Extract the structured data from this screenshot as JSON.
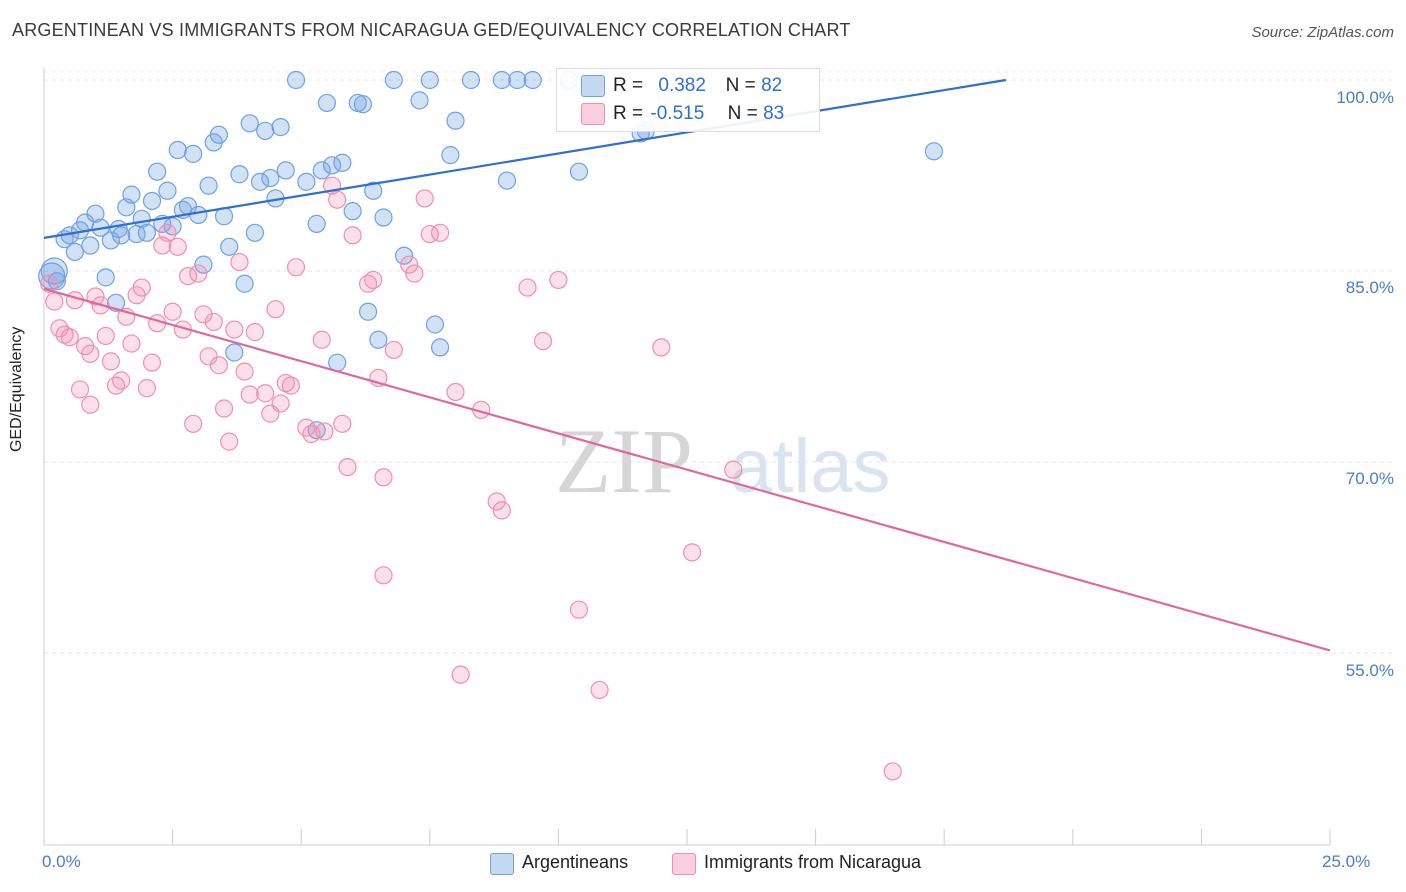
{
  "header": {
    "title": "ARGENTINEAN VS IMMIGRANTS FROM NICARAGUA GED/EQUIVALENCY CORRELATION CHART",
    "source": "Source: ZipAtlas.com"
  },
  "watermark": {
    "zip": "ZIP",
    "atlas": "atlas"
  },
  "legend": {
    "r_label": "R =",
    "n_label": "N =",
    "rows": [
      {
        "r": "0.382",
        "n": "82"
      },
      {
        "r": "-0.515",
        "n": "83"
      }
    ]
  },
  "chart_data": {
    "type": "scatter",
    "title": "ARGENTINEAN VS IMMIGRANTS FROM NICARAGUA GED/EQUIVALENCY CORRELATION CHART",
    "xlabel": "",
    "ylabel": "GED/Equivalency",
    "xlim": [
      0,
      25
    ],
    "ylim": [
      40,
      100
    ],
    "x_tick_labels": [
      "0.0%",
      "25.0%"
    ],
    "y_ticks": [
      55,
      70,
      85,
      100
    ],
    "y_tick_labels": [
      "55.0%",
      "70.0%",
      "85.0%",
      "100.0%"
    ],
    "grid": true,
    "legend_position": "top-center",
    "colors": {
      "Argentineans": "#6fa1e3",
      "Immigrants from Nicaragua": "#ef8fb1",
      "text_blue": "#4a7cc7"
    },
    "series": [
      {
        "name": "Argentineans",
        "trend": {
          "x": [
            0,
            18.7
          ],
          "y": [
            87.6,
            100
          ]
        },
        "points": [
          [
            0.15,
            84.6
          ],
          [
            0.2,
            85.0
          ],
          [
            0.4,
            87.5
          ],
          [
            0.5,
            87.8
          ],
          [
            0.6,
            86.5
          ],
          [
            0.7,
            88.2
          ],
          [
            0.8,
            88.8
          ],
          [
            0.9,
            87.0
          ],
          [
            1.0,
            89.5
          ],
          [
            1.1,
            88.4
          ],
          [
            1.2,
            84.5
          ],
          [
            1.3,
            87.4
          ],
          [
            1.4,
            82.5
          ],
          [
            1.5,
            87.8
          ],
          [
            1.6,
            90.0
          ],
          [
            1.7,
            91.0
          ],
          [
            1.8,
            87.9
          ],
          [
            1.9,
            89.1
          ],
          [
            2.0,
            88.0
          ],
          [
            2.1,
            90.5
          ],
          [
            2.2,
            92.8
          ],
          [
            2.3,
            88.7
          ],
          [
            2.4,
            91.3
          ],
          [
            2.5,
            88.5
          ],
          [
            2.6,
            94.5
          ],
          [
            2.7,
            89.8
          ],
          [
            2.8,
            90.1
          ],
          [
            2.9,
            94.2
          ],
          [
            3.0,
            89.4
          ],
          [
            3.1,
            85.5
          ],
          [
            3.2,
            91.7
          ],
          [
            3.3,
            95.1
          ],
          [
            3.4,
            95.7
          ],
          [
            3.5,
            89.3
          ],
          [
            3.6,
            86.9
          ],
          [
            3.7,
            78.6
          ],
          [
            3.8,
            92.6
          ],
          [
            3.9,
            84.0
          ],
          [
            4.0,
            96.6
          ],
          [
            4.1,
            88.0
          ],
          [
            4.2,
            92.0
          ],
          [
            4.3,
            96.0
          ],
          [
            4.4,
            92.3
          ],
          [
            4.5,
            90.7
          ],
          [
            4.6,
            96.3
          ],
          [
            4.7,
            92.9
          ],
          [
            4.9,
            100.0
          ],
          [
            5.1,
            92.0
          ],
          [
            5.3,
            88.7
          ],
          [
            5.4,
            92.9
          ],
          [
            5.5,
            98.2
          ],
          [
            5.6,
            93.3
          ],
          [
            5.7,
            77.8
          ],
          [
            5.8,
            93.5
          ],
          [
            6.0,
            89.7
          ],
          [
            6.1,
            98.2
          ],
          [
            6.2,
            98.1
          ],
          [
            6.3,
            81.8
          ],
          [
            6.4,
            91.3
          ],
          [
            6.5,
            79.6
          ],
          [
            6.6,
            89.2
          ],
          [
            6.8,
            100.0
          ],
          [
            7.0,
            86.2
          ],
          [
            7.3,
            98.4
          ],
          [
            7.5,
            100.0
          ],
          [
            7.6,
            80.8
          ],
          [
            7.7,
            79.0
          ],
          [
            7.9,
            94.1
          ],
          [
            8.0,
            96.8
          ],
          [
            8.3,
            100.0
          ],
          [
            8.9,
            100.0
          ],
          [
            9.0,
            92.1
          ],
          [
            9.2,
            100.0
          ],
          [
            9.5,
            100.0
          ],
          [
            10.2,
            100.0
          ],
          [
            10.4,
            92.8
          ],
          [
            11.6,
            95.8
          ],
          [
            11.7,
            96.0
          ],
          [
            17.3,
            94.4
          ],
          [
            5.3,
            72.5
          ],
          [
            0.25,
            84.2
          ],
          [
            1.45,
            88.3
          ]
        ]
      },
      {
        "name": "Immigrants from Nicaragua",
        "trend": {
          "x": [
            0,
            25
          ],
          "y": [
            83.6,
            55.2
          ]
        },
        "points": [
          [
            0.1,
            84.0
          ],
          [
            0.2,
            82.6
          ],
          [
            0.3,
            80.5
          ],
          [
            0.4,
            80.0
          ],
          [
            0.5,
            79.8
          ],
          [
            0.6,
            82.7
          ],
          [
            0.7,
            75.7
          ],
          [
            0.8,
            79.1
          ],
          [
            0.9,
            78.5
          ],
          [
            1.0,
            83.0
          ],
          [
            1.1,
            82.3
          ],
          [
            1.2,
            79.9
          ],
          [
            1.3,
            77.9
          ],
          [
            1.4,
            76.0
          ],
          [
            1.5,
            76.4
          ],
          [
            1.6,
            81.4
          ],
          [
            1.7,
            79.3
          ],
          [
            1.8,
            83.1
          ],
          [
            1.9,
            83.7
          ],
          [
            2.0,
            75.8
          ],
          [
            2.1,
            77.8
          ],
          [
            2.2,
            80.9
          ],
          [
            2.3,
            87.0
          ],
          [
            2.4,
            88.0
          ],
          [
            2.5,
            81.8
          ],
          [
            2.6,
            86.9
          ],
          [
            2.7,
            80.4
          ],
          [
            2.8,
            84.6
          ],
          [
            2.9,
            73.0
          ],
          [
            3.0,
            84.8
          ],
          [
            3.1,
            81.6
          ],
          [
            3.2,
            78.3
          ],
          [
            3.3,
            81.0
          ],
          [
            3.4,
            77.6
          ],
          [
            3.5,
            74.2
          ],
          [
            3.6,
            71.6
          ],
          [
            3.7,
            80.4
          ],
          [
            3.8,
            85.7
          ],
          [
            3.9,
            77.1
          ],
          [
            4.0,
            75.3
          ],
          [
            4.1,
            80.2
          ],
          [
            4.3,
            75.4
          ],
          [
            4.4,
            73.8
          ],
          [
            4.5,
            82.0
          ],
          [
            4.6,
            74.6
          ],
          [
            4.7,
            76.2
          ],
          [
            4.8,
            76.0
          ],
          [
            4.9,
            85.3
          ],
          [
            5.1,
            72.7
          ],
          [
            5.2,
            72.2
          ],
          [
            5.4,
            79.6
          ],
          [
            5.6,
            91.7
          ],
          [
            5.7,
            90.6
          ],
          [
            5.8,
            73.0
          ],
          [
            5.9,
            69.6
          ],
          [
            6.0,
            87.8
          ],
          [
            6.3,
            84.0
          ],
          [
            6.4,
            84.3
          ],
          [
            6.5,
            76.6
          ],
          [
            6.6,
            68.8
          ],
          [
            6.6,
            61.1
          ],
          [
            6.8,
            78.8
          ],
          [
            7.1,
            85.5
          ],
          [
            7.2,
            84.8
          ],
          [
            7.4,
            90.7
          ],
          [
            7.5,
            87.9
          ],
          [
            7.7,
            88.0
          ],
          [
            8.0,
            75.5
          ],
          [
            8.1,
            53.3
          ],
          [
            8.5,
            74.1
          ],
          [
            8.8,
            66.9
          ],
          [
            8.9,
            66.2
          ],
          [
            9.4,
            83.7
          ],
          [
            9.7,
            79.5
          ],
          [
            10.0,
            84.3
          ],
          [
            10.4,
            58.4
          ],
          [
            10.8,
            52.1
          ],
          [
            12.0,
            79.0
          ],
          [
            12.6,
            62.9
          ],
          [
            13.4,
            69.4
          ],
          [
            16.5,
            45.7
          ],
          [
            0.9,
            74.5
          ],
          [
            5.45,
            72.4
          ]
        ]
      }
    ]
  },
  "bottom_legend": [
    {
      "label": "Argentineans"
    },
    {
      "label": "Immigrants from Nicaragua"
    }
  ]
}
